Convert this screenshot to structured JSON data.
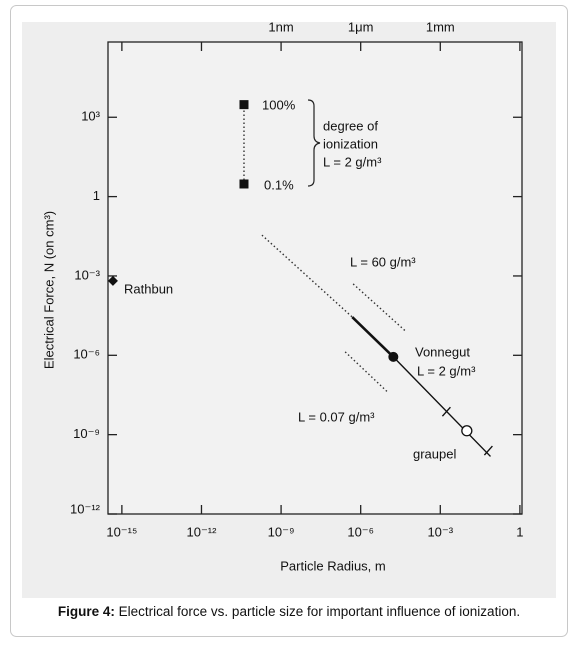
{
  "chart_data": {
    "type": "scatter",
    "xlog": true,
    "ylog": true,
    "x_label": "Particle Radius, m",
    "y_label": "Electrical Force, N (on cm³)",
    "caption_bold": "Figure 4:",
    "caption": " Electrical force vs. particle size for important influence of ionization.",
    "xlim": [
      3e-16,
      1.2
    ],
    "ylim": [
      1e-12,
      700000.0
    ],
    "xticks": [
      {
        "value": 1e-15,
        "label": "10⁻¹⁵"
      },
      {
        "value": 1e-12,
        "label": "10⁻¹²"
      },
      {
        "value": 1e-09,
        "label": "10⁻⁹"
      },
      {
        "value": 1e-06,
        "label": "10⁻⁶"
      },
      {
        "value": 0.001,
        "label": "10⁻³"
      },
      1
    ],
    "x2ticks": [
      {
        "value": 1e-09,
        "label": "1nm"
      },
      {
        "value": 1e-06,
        "label": "1μm"
      },
      {
        "value": 0.001,
        "label": "1mm"
      }
    ],
    "yticks": [
      {
        "value": 1e-12,
        "label": "10⁻¹²"
      },
      {
        "value": 1e-09,
        "label": "10⁻⁹"
      },
      {
        "value": 1e-06,
        "label": "10⁻⁶"
      },
      {
        "value": 0.001,
        "label": "10⁻³"
      },
      1,
      {
        "value": 1000,
        "label": "10³"
      }
    ],
    "lines": [
      {
        "style": "dotted",
        "x": [
          4e-11,
          4e-11
        ],
        "values": [
          3,
          3000
        ]
      },
      {
        "style": "dotted",
        "x": [
          1.9e-10,
          4.8e-07
        ],
        "values": [
          0.035,
          2.8e-05
        ]
      },
      {
        "style": "thick",
        "x": [
          4.8e-07,
          1.7e-05
        ],
        "values": [
          2.8e-05,
          8.7e-07
        ]
      },
      {
        "style": "solid",
        "x": [
          1.7e-05,
          0.078
        ],
        "values": [
          8.7e-07,
          1.5e-10
        ]
      },
      {
        "style": "dotted",
        "x": [
          5.2e-07,
          5.2e-05
        ],
        "values": [
          0.0005,
          7.8e-06
        ]
      },
      {
        "style": "dotted",
        "x": [
          2.6e-07,
          1e-05
        ],
        "values": [
          1.35e-06,
          4.2e-08
        ]
      }
    ],
    "points": [
      {
        "label": "Rathbun",
        "marker": "diamond",
        "x": 4.6e-16,
        "y": 0.00065
      },
      {
        "label": "100%",
        "marker": "square",
        "x": 4e-11,
        "y": 3000
      },
      {
        "label": "0.1%",
        "marker": "square",
        "x": 4e-11,
        "y": 3
      },
      {
        "label": "Vonnegut",
        "marker": "filled-circle",
        "x": 1.7e-05,
        "y": 8.7e-07
      },
      {
        "label": "graupel",
        "marker": "open-circle",
        "x": 0.01,
        "y": 1.4e-09
      },
      {
        "marker": "tick",
        "x": 0.0017,
        "y": 7.4e-09
      },
      {
        "marker": "tick",
        "x": 0.065,
        "y": 2.5e-10
      }
    ],
    "annotations": [
      "degree of",
      "ionization",
      "L = 2 g/m³",
      "L = 60 g/m³",
      "L = 2 g/m³",
      "L = 0.07 g/m³"
    ]
  }
}
